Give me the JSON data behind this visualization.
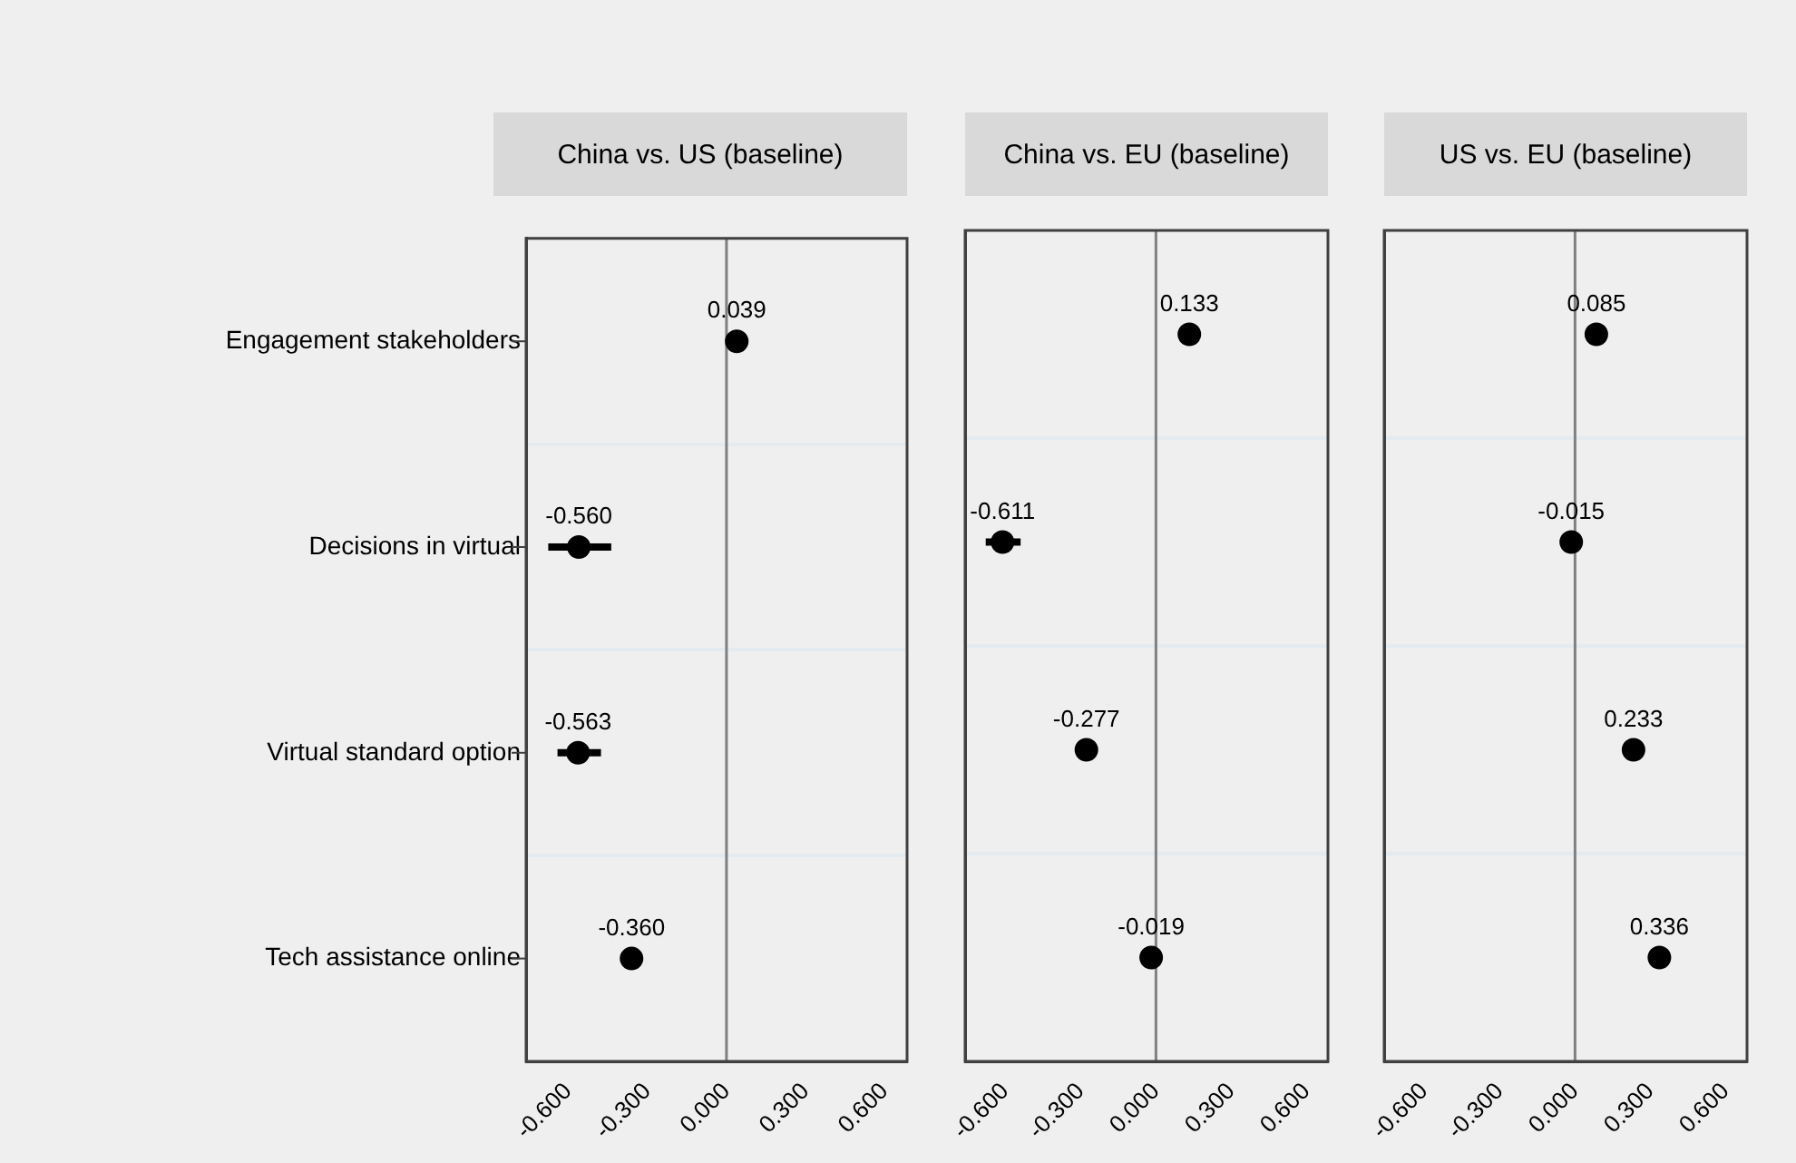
{
  "chart_data": [
    {
      "type": "scatter",
      "orientation": "horizontal",
      "title": "China vs. US (baseline)",
      "categories": [
        "Engagement stakeholders",
        "Decisions in virtual",
        "Virtual standard option",
        "Tech assistance online"
      ],
      "values": [
        0.039,
        -0.56,
        -0.563,
        -0.36
      ],
      "value_labels": [
        "0.039",
        "-0.560",
        "-0.563",
        "-0.360"
      ],
      "errors": [
        null,
        [
          -0.676,
          -0.437
        ],
        [
          -0.641,
          -0.476
        ],
        null
      ],
      "color": "#000000",
      "marker": "circle",
      "xlim": [
        -0.76,
        0.685
      ],
      "xticks": [
        {
          "value": -0.6,
          "label": "-0.600"
        },
        {
          "value": -0.3,
          "label": "-0.300"
        },
        {
          "value": 0,
          "label": "0.000"
        },
        {
          "value": 0.3,
          "label": "0.300"
        },
        {
          "value": 0.6,
          "label": "0.600"
        }
      ],
      "grid": "y",
      "ref_lines": [
        {
          "axis": "x",
          "value": 0,
          "color": "#808080"
        }
      ]
    },
    {
      "type": "scatter",
      "orientation": "horizontal",
      "title": "China vs. EU (baseline)",
      "categories": [
        null,
        null,
        null,
        null
      ],
      "values": [
        0.133,
        -0.611,
        -0.277,
        -0.019
      ],
      "value_labels": [
        "0.133",
        "-0.611",
        "-0.277",
        "-0.019"
      ],
      "errors": [
        null,
        [
          -0.678,
          -0.539
        ],
        null,
        null
      ],
      "color": "#000000",
      "marker": "circle",
      "xlim": [
        -0.76,
        0.685
      ],
      "xticks": [
        {
          "value": -0.6,
          "label": "-0.600"
        },
        {
          "value": -0.3,
          "label": "-0.300"
        },
        {
          "value": 0,
          "label": "0.000"
        },
        {
          "value": 0.3,
          "label": "0.300"
        },
        {
          "value": 0.6,
          "label": "0.600"
        }
      ],
      "grid": "y",
      "tick_labels": "x",
      "ref_lines": [
        {
          "axis": "x",
          "value": 0,
          "color": "#808080"
        }
      ]
    },
    {
      "type": "scatter",
      "orientation": "horizontal",
      "title": "US vs. EU (baseline)",
      "categories": [
        null,
        null,
        null,
        null
      ],
      "values": [
        0.085,
        -0.015,
        0.233,
        0.336
      ],
      "value_labels": [
        "0.085",
        "-0.015",
        "0.233",
        "0.336"
      ],
      "color": "#000000",
      "marker": "circle",
      "xlim": [
        -0.76,
        0.685
      ],
      "xticks": [
        {
          "value": -0.6,
          "label": "-0.600"
        },
        {
          "value": -0.3,
          "label": "-0.300"
        },
        {
          "value": 0,
          "label": "0.000"
        },
        {
          "value": 0.3,
          "label": "0.300"
        },
        {
          "value": 0.6,
          "label": "0.600"
        }
      ],
      "grid": "y",
      "tick_labels": "x",
      "ref_lines": [
        {
          "axis": "x",
          "value": 0,
          "color": "#808080"
        }
      ]
    }
  ]
}
